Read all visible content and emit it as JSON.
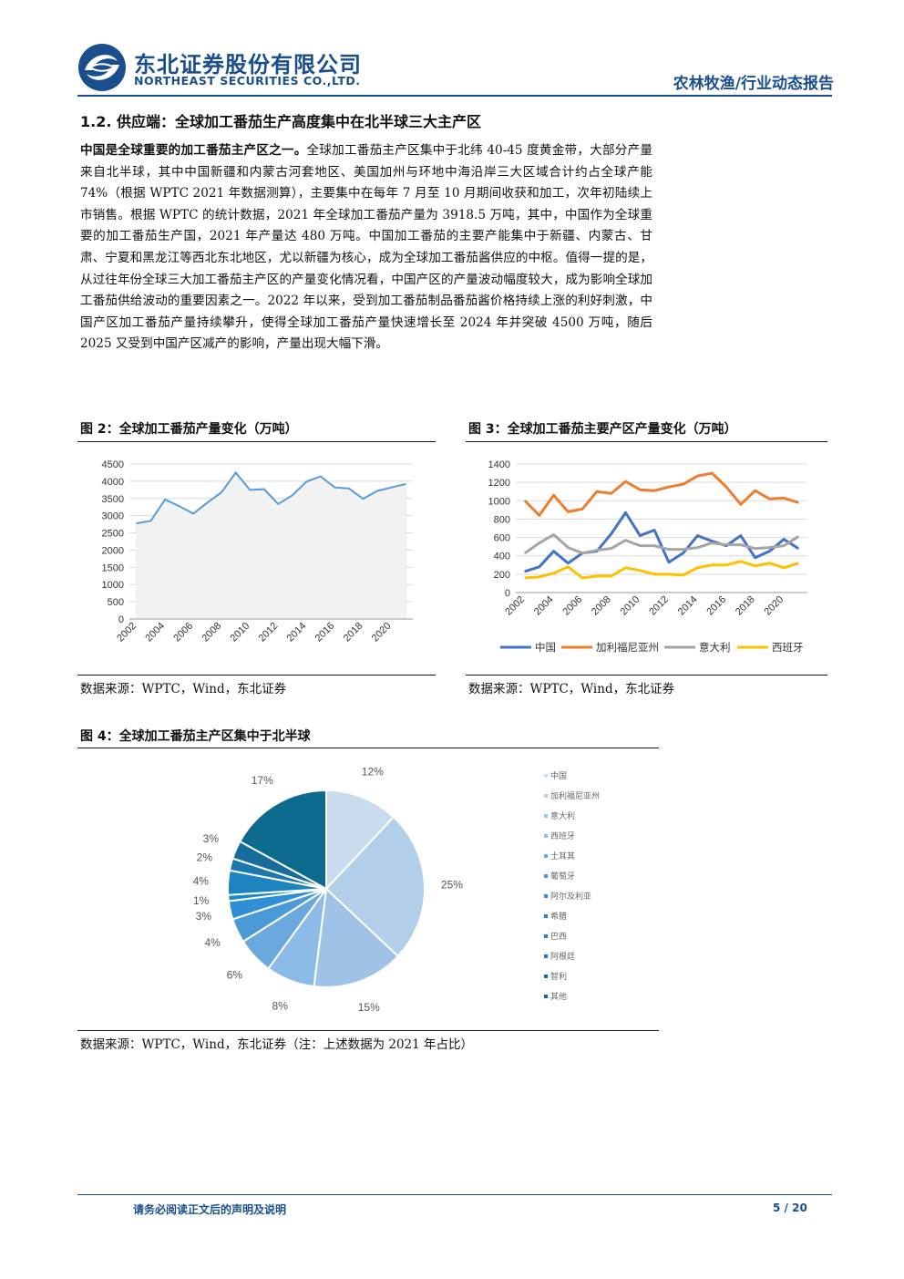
{
  "header": {
    "company_cn": "东北证券股份有限公司",
    "company_en": "NORTHEAST SECURITIES CO.,LTD.",
    "report_type": "农林牧渔/行业动态报告",
    "brand_color": "#1a4e8c"
  },
  "section": {
    "title": "1.2.  供应端：全球加工番茄生产高度集中在北半球三大主产区"
  },
  "body": {
    "lead": "中国是全球重要的加工番茄主产区之一。",
    "text": "全球加工番茄主产区集中于北纬 40-45 度黄金带，大部分产量来自北半球，其中中国新疆和内蒙古河套地区、美国加州与环地中海沿岸三大区域合计约占全球产能 74%（根据 WPTC 2021 年数据测算），主要集中在每年 7 月至 10 月期间收获和加工，次年初陆续上市销售。根据 WPTC 的统计数据，2021 年全球加工番茄产量为 3918.5 万吨，其中，中国作为全球重要的加工番茄生产国，2021 年产量达 480 万吨。中国加工番茄的主要产能集中于新疆、内蒙古、甘肃、宁夏和黑龙江等西北东北地区，尤以新疆为核心，成为全球加工番茄酱供应的中枢。值得一提的是，从过往年份全球三大加工番茄主产区的产量变化情况看，中国产区的产量波动幅度较大，成为影响全球加工番茄供给波动的重要因素之一。2022 年以来，受到加工番茄制品番茄酱价格持续上涨的利好刺激，中国产区加工番茄产量持续攀升，使得全球加工番茄产量快速增长至 2024 年并突破 4500 万吨，随后 2025 又受到中国产区减产的影响，产量出现大幅下滑。"
  },
  "figures": {
    "fig2": {
      "title": "图 2：全球加工番茄产量变化（万吨）",
      "source": "数据来源：WPTC，Wind，东北证券"
    },
    "fig3": {
      "title": "图 3：全球加工番茄主要产区产量变化（万吨）",
      "source": "数据来源：WPTC，Wind，东北证券"
    },
    "fig4": {
      "title": "图 4：全球加工番茄主产区集中于北半球",
      "source": "数据来源：WPTC，Wind，东北证券（注：上述数据为 2021 年占比）"
    }
  },
  "footer": {
    "note": "请务必阅读正文后的声明及说明",
    "page": "5 / 20"
  },
  "chart_data": [
    {
      "id": "fig2",
      "type": "area",
      "title": "",
      "x": [
        2002,
        2003,
        2004,
        2005,
        2006,
        2007,
        2008,
        2009,
        2010,
        2011,
        2012,
        2013,
        2014,
        2015,
        2016,
        2017,
        2018,
        2019,
        2020,
        2021
      ],
      "values": [
        2780,
        2850,
        3470,
        3280,
        3060,
        3380,
        3680,
        4250,
        3750,
        3770,
        3340,
        3590,
        3990,
        4140,
        3820,
        3790,
        3490,
        3720,
        3820,
        3918
      ],
      "xticks": [
        "2002",
        "2004",
        "2006",
        "2008",
        "2010",
        "2012",
        "2014",
        "2016",
        "2018",
        "2020"
      ],
      "yticks": [
        "0",
        "500",
        "1000",
        "1500",
        "2000",
        "2500",
        "3000",
        "3500",
        "4000",
        "4500"
      ],
      "ylim": [
        0,
        4500
      ],
      "grid": true,
      "color": "#5b9bd5"
    },
    {
      "id": "fig3",
      "type": "line",
      "title": "",
      "x": [
        2002,
        2003,
        2004,
        2005,
        2006,
        2007,
        2008,
        2009,
        2010,
        2011,
        2012,
        2013,
        2014,
        2015,
        2016,
        2017,
        2018,
        2019,
        2020,
        2021
      ],
      "series": [
        {
          "name": "中国",
          "color": "#4472c4",
          "values": [
            230,
            280,
            450,
            320,
            430,
            450,
            640,
            870,
            620,
            680,
            330,
            430,
            620,
            560,
            510,
            620,
            380,
            450,
            580,
            480
          ]
        },
        {
          "name": "加利福尼亚州",
          "color": "#ed7d31",
          "values": [
            1000,
            840,
            1060,
            880,
            910,
            1100,
            1080,
            1210,
            1120,
            1110,
            1150,
            1180,
            1270,
            1300,
            1150,
            960,
            1110,
            1020,
            1030,
            980
          ]
        },
        {
          "name": "意大利",
          "color": "#a5a5a5",
          "values": [
            430,
            540,
            630,
            490,
            430,
            460,
            480,
            570,
            510,
            510,
            470,
            470,
            490,
            540,
            520,
            520,
            480,
            490,
            510,
            610
          ]
        },
        {
          "name": "西班牙",
          "color": "#ffc000",
          "values": [
            160,
            170,
            210,
            280,
            160,
            180,
            180,
            270,
            240,
            200,
            200,
            190,
            270,
            300,
            300,
            340,
            290,
            320,
            270,
            320
          ]
        }
      ],
      "xticks": [
        "2002",
        "2004",
        "2006",
        "2008",
        "2010",
        "2012",
        "2014",
        "2016",
        "2018",
        "2020"
      ],
      "yticks": [
        "0",
        "200",
        "400",
        "600",
        "800",
        "1000",
        "1200",
        "1400"
      ],
      "ylim": [
        0,
        1400
      ],
      "grid": true,
      "legend": "bottom"
    },
    {
      "id": "fig4",
      "type": "pie",
      "title": "",
      "slices": [
        {
          "name": "中国",
          "value": 12,
          "label": "12%",
          "color": "#c8dcee"
        },
        {
          "name": "加利福尼亚州",
          "value": 25,
          "label": "25%",
          "color": "#b2cfea"
        },
        {
          "name": "意大利",
          "value": 15,
          "label": "15%",
          "color": "#9ec3e6"
        },
        {
          "name": "西班牙",
          "value": 8,
          "label": "8%",
          "color": "#8bbbe6"
        },
        {
          "name": "土耳其",
          "value": 6,
          "label": "6%",
          "color": "#6aa8de"
        },
        {
          "name": "葡萄牙",
          "value": 4,
          "label": "4%",
          "color": "#4b9ad8"
        },
        {
          "name": "阿尔及利亚",
          "value": 3,
          "label": "3%",
          "color": "#2f8fd4"
        },
        {
          "name": "希腊",
          "value": 1,
          "label": "1%",
          "color": "#1988c8"
        },
        {
          "name": "巴西",
          "value": 4,
          "label": "4%",
          "color": "#1c84bf"
        },
        {
          "name": "阿根廷",
          "value": 2,
          "label": "2%",
          "color": "#1978ad"
        },
        {
          "name": "智利",
          "value": 3,
          "label": "3%",
          "color": "#166c9b"
        },
        {
          "name": "其他",
          "value": 17,
          "label": "17%",
          "color": "#0c6a8e"
        }
      ],
      "legend": "right"
    }
  ]
}
